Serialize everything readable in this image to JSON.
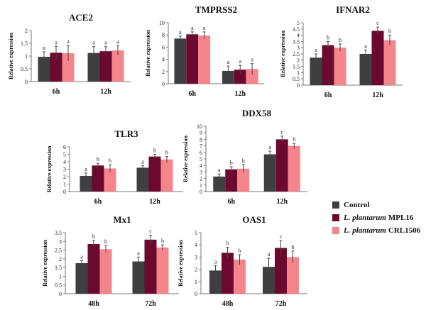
{
  "ylabel": "Relative expression",
  "colors": {
    "Control": "#3f3f42",
    "MPL16": "#6b0a2e",
    "CRL1506": "#f4858a"
  },
  "legend": {
    "items": [
      {
        "key": "Control",
        "name": "",
        "strain": "Control"
      },
      {
        "key": "MPL16",
        "name": "L. plantarum",
        "strain": "MPL16"
      },
      {
        "key": "CRL1506",
        "name": "L. plantarum",
        "strain": "CRL1506"
      }
    ]
  },
  "chart_data": [
    {
      "type": "bar",
      "title": "ACE2",
      "categories": [
        "6h",
        "12h"
      ],
      "ylim": [
        0,
        2
      ],
      "yticks": [
        0,
        0.5,
        1,
        1.5,
        2
      ],
      "grid": false,
      "series": [
        {
          "name": "Control",
          "values": [
            0.97,
            1.12
          ],
          "errors": [
            0.2,
            0.25
          ],
          "letters": [
            "a",
            "a"
          ]
        },
        {
          "name": "L. plantarum MPL16",
          "values": [
            1.13,
            1.19
          ],
          "errors": [
            0.25,
            0.18
          ],
          "letters": [
            "a",
            "a"
          ]
        },
        {
          "name": "L. plantarum CRL1506",
          "values": [
            1.11,
            1.22
          ],
          "errors": [
            0.3,
            0.18
          ],
          "letters": [
            "a",
            "a"
          ]
        }
      ]
    },
    {
      "type": "bar",
      "title": "TMPRSS2",
      "categories": [
        "6h",
        "12h"
      ],
      "ylim": [
        0,
        10
      ],
      "yticks": [
        0,
        2,
        4,
        6,
        8,
        10
      ],
      "grid": false,
      "series": [
        {
          "name": "Control",
          "values": [
            7.4,
            2.1
          ],
          "errors": [
            0.4,
            0.8
          ],
          "letters": [
            "a",
            "a"
          ]
        },
        {
          "name": "L. plantarum MPL16",
          "values": [
            8.1,
            2.3
          ],
          "errors": [
            0.4,
            0.7
          ],
          "letters": [
            "a",
            "a"
          ]
        },
        {
          "name": "L. plantarum CRL1506",
          "values": [
            7.9,
            2.4
          ],
          "errors": [
            0.6,
            0.9
          ],
          "letters": [
            "a",
            "a"
          ]
        }
      ]
    },
    {
      "type": "bar",
      "title": "IFNAR2",
      "categories": [
        "6h",
        "12h"
      ],
      "ylim": [
        0,
        5
      ],
      "yticks": [
        0,
        0.5,
        1,
        1.5,
        2,
        2.5,
        3,
        3.5,
        4,
        4.5,
        5
      ],
      "grid": false,
      "series": [
        {
          "name": "Control",
          "values": [
            2.2,
            2.5
          ],
          "errors": [
            0.3,
            0.3
          ],
          "letters": [
            "a",
            "a"
          ]
        },
        {
          "name": "L. plantarum MPL16",
          "values": [
            3.2,
            4.35
          ],
          "errors": [
            0.3,
            0.3
          ],
          "letters": [
            "b",
            "c"
          ]
        },
        {
          "name": "L. plantarum CRL1506",
          "values": [
            3.0,
            3.6
          ],
          "errors": [
            0.3,
            0.4
          ],
          "letters": [
            "b",
            "b"
          ]
        }
      ]
    },
    {
      "type": "bar",
      "title": "TLR3",
      "categories": [
        "6h",
        "12h"
      ],
      "ylim": [
        0,
        6
      ],
      "yticks": [
        0,
        1,
        2,
        3,
        4,
        5,
        6
      ],
      "grid": false,
      "series": [
        {
          "name": "Control",
          "values": [
            2.1,
            3.2
          ],
          "errors": [
            0.4,
            0.3
          ],
          "letters": [
            "a",
            "a"
          ]
        },
        {
          "name": "L. plantarum MPL16",
          "values": [
            3.5,
            4.7
          ],
          "errors": [
            0.3,
            0.3
          ],
          "letters": [
            "b",
            "b"
          ]
        },
        {
          "name": "L. plantarum CRL1506",
          "values": [
            3.1,
            4.3
          ],
          "errors": [
            0.5,
            0.4
          ],
          "letters": [
            "b",
            "b"
          ]
        }
      ]
    },
    {
      "type": "bar",
      "title": "DDX58",
      "categories": [
        "6h",
        "12h"
      ],
      "ylim": [
        0,
        10
      ],
      "yticks": [
        0,
        1,
        2,
        3,
        4,
        5,
        6,
        7,
        8,
        9,
        10
      ],
      "grid": false,
      "series": [
        {
          "name": "Control",
          "values": [
            2.3,
            5.7
          ],
          "errors": [
            0.4,
            0.5
          ],
          "letters": [
            "a",
            "a"
          ]
        },
        {
          "name": "L. plantarum MPL16",
          "values": [
            3.4,
            8.0
          ],
          "errors": [
            0.4,
            0.5
          ],
          "letters": [
            "b",
            "c"
          ]
        },
        {
          "name": "L. plantarum CRL1506",
          "values": [
            3.5,
            7.0
          ],
          "errors": [
            0.6,
            0.4
          ],
          "letters": [
            "b",
            "b"
          ]
        }
      ]
    },
    {
      "type": "bar",
      "title": "Mx1",
      "categories": [
        "48h",
        "72h"
      ],
      "ylim": [
        0,
        3.5
      ],
      "yticks": [
        0,
        0.5,
        1,
        1.5,
        2,
        2.5,
        3,
        3.5
      ],
      "grid": false,
      "series": [
        {
          "name": "Control",
          "values": [
            1.75,
            1.85
          ],
          "errors": [
            0.15,
            0.25
          ],
          "letters": [
            "a",
            "a"
          ]
        },
        {
          "name": "L. plantarum MPL16",
          "values": [
            2.85,
            3.1
          ],
          "errors": [
            0.2,
            0.25
          ],
          "letters": [
            "b",
            "c"
          ]
        },
        {
          "name": "L. plantarum CRL1506",
          "values": [
            2.55,
            2.65
          ],
          "errors": [
            0.2,
            0.15
          ],
          "letters": [
            "b",
            "b"
          ]
        }
      ]
    },
    {
      "type": "bar",
      "title": "OAS1",
      "categories": [
        "48h",
        "72h"
      ],
      "ylim": [
        0,
        5
      ],
      "yticks": [
        0,
        1,
        2,
        3,
        4,
        5
      ],
      "grid": false,
      "series": [
        {
          "name": "Control",
          "values": [
            1.9,
            2.2
          ],
          "errors": [
            0.4,
            0.7
          ],
          "letters": [
            "a",
            "a"
          ]
        },
        {
          "name": "L. plantarum MPL16",
          "values": [
            3.35,
            3.75
          ],
          "errors": [
            0.45,
            0.6
          ],
          "letters": [
            "b",
            "c"
          ]
        },
        {
          "name": "L. plantarum CRL1506",
          "values": [
            2.8,
            3.0
          ],
          "errors": [
            0.4,
            0.5
          ],
          "letters": [
            "b",
            "b"
          ]
        }
      ]
    }
  ]
}
